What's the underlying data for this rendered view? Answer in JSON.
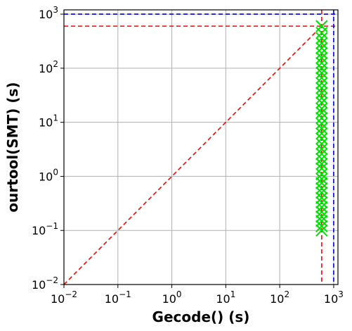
{
  "chart_data": {
    "type": "scatter",
    "title": "",
    "xlabel": "Gecode() (s)",
    "ylabel": "ourtool(SMT) (s)",
    "xscale": "log",
    "yscale": "log",
    "xlim": [
      0.01,
      1200
    ],
    "ylim": [
      0.01,
      1200
    ],
    "xticks": [
      {
        "value": 0.01,
        "base": "10",
        "exp": "−2"
      },
      {
        "value": 0.1,
        "base": "10",
        "exp": "−1"
      },
      {
        "value": 1,
        "base": "10",
        "exp": "0"
      },
      {
        "value": 10,
        "base": "10",
        "exp": "1"
      },
      {
        "value": 100,
        "base": "10",
        "exp": "2"
      },
      {
        "value": 1000,
        "base": "10",
        "exp": "3"
      }
    ],
    "yticks": [
      {
        "value": 0.01,
        "base": "10",
        "exp": "−2"
      },
      {
        "value": 0.1,
        "base": "10",
        "exp": "−1"
      },
      {
        "value": 1,
        "base": "10",
        "exp": "0"
      },
      {
        "value": 10,
        "base": "10",
        "exp": "1"
      },
      {
        "value": 100,
        "base": "10",
        "exp": "2"
      },
      {
        "value": 1000,
        "base": "10",
        "exp": "3"
      }
    ],
    "grid": true,
    "diagonal": {
      "from": 0.01,
      "to": 600,
      "color": "#ff0000",
      "style": "dashed"
    },
    "timeout_lines": [
      {
        "axis": "x",
        "value": 600,
        "color": "#ff0000",
        "style": "dashed"
      },
      {
        "axis": "y",
        "value": 600,
        "color": "#ff0000",
        "style": "dashed"
      },
      {
        "axis": "x",
        "value": 1000,
        "color": "#0000cc",
        "style": "dashed"
      },
      {
        "axis": "y",
        "value": 1000,
        "color": "#0000cc",
        "style": "dashed"
      }
    ],
    "series": [
      {
        "marker": "x",
        "color": "#00e000",
        "points": [
          {
            "x": 600,
            "y": 0.1
          },
          {
            "x": 600,
            "y": 0.12
          },
          {
            "x": 600,
            "y": 0.15
          },
          {
            "x": 600,
            "y": 0.18
          },
          {
            "x": 600,
            "y": 0.22
          },
          {
            "x": 600,
            "y": 0.27
          },
          {
            "x": 600,
            "y": 0.33
          },
          {
            "x": 600,
            "y": 0.4
          },
          {
            "x": 600,
            "y": 0.5
          },
          {
            "x": 600,
            "y": 0.6
          },
          {
            "x": 600,
            "y": 0.75
          },
          {
            "x": 600,
            "y": 0.9
          },
          {
            "x": 600,
            "y": 1.1
          },
          {
            "x": 600,
            "y": 1.4
          },
          {
            "x": 600,
            "y": 1.7
          },
          {
            "x": 600,
            "y": 2.1
          },
          {
            "x": 600,
            "y": 2.6
          },
          {
            "x": 600,
            "y": 3.2
          },
          {
            "x": 600,
            "y": 4
          },
          {
            "x": 600,
            "y": 5
          },
          {
            "x": 600,
            "y": 6.2
          },
          {
            "x": 600,
            "y": 7.7
          },
          {
            "x": 600,
            "y": 9.5
          },
          {
            "x": 600,
            "y": 12
          },
          {
            "x": 600,
            "y": 15
          },
          {
            "x": 600,
            "y": 18
          },
          {
            "x": 600,
            "y": 23
          },
          {
            "x": 600,
            "y": 28
          },
          {
            "x": 600,
            "y": 35
          },
          {
            "x": 600,
            "y": 43
          },
          {
            "x": 600,
            "y": 53
          },
          {
            "x": 600,
            "y": 66
          },
          {
            "x": 600,
            "y": 82
          },
          {
            "x": 600,
            "y": 100
          },
          {
            "x": 600,
            "y": 125
          },
          {
            "x": 600,
            "y": 155
          },
          {
            "x": 600,
            "y": 190
          },
          {
            "x": 600,
            "y": 235
          },
          {
            "x": 600,
            "y": 290
          },
          {
            "x": 600,
            "y": 360
          },
          {
            "x": 600,
            "y": 450
          },
          {
            "x": 600,
            "y": 600
          }
        ]
      }
    ]
  }
}
